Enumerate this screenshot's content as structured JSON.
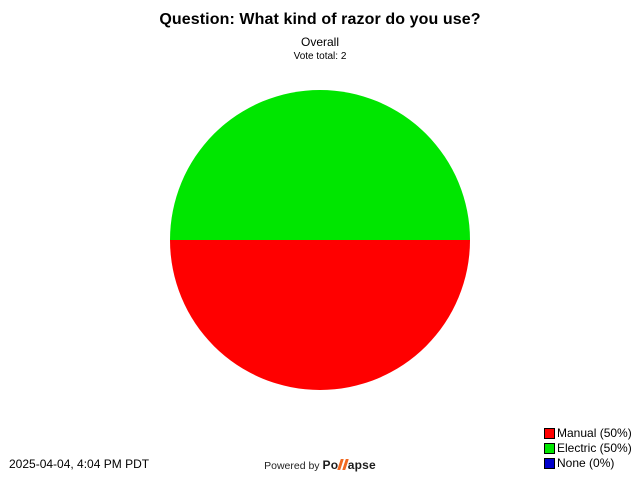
{
  "header": {
    "title": "Question: What kind of razor do you use?",
    "subtitle": "Overall",
    "vote_total": "Vote total: 2"
  },
  "chart_data": {
    "type": "pie",
    "title": "Question: What kind of razor do you use?",
    "subtitle": "Overall",
    "vote_total": 2,
    "start_angle_deg": 90,
    "direction": "clockwise",
    "slices": [
      {
        "label": "Manual",
        "pct": 50,
        "votes_share": 0.5,
        "color": "#ff0000"
      },
      {
        "label": "Electric",
        "pct": 50,
        "votes_share": 0.5,
        "color": "#00e600"
      },
      {
        "label": "None",
        "pct": 0,
        "votes_share": 0.0,
        "color": "#0000cc"
      }
    ],
    "legend": [
      {
        "label": "Manual (50%)",
        "color": "#ff0000"
      },
      {
        "label": "Electric (50%)",
        "color": "#00e600"
      },
      {
        "label": "None (0%)",
        "color": "#0000cc"
      }
    ],
    "legend_position": "bottom-right",
    "grid": false
  },
  "footer": {
    "timestamp": "2025-04-04, 4:04 PM PDT",
    "powered_by": "Powered by",
    "brand_prefix": "Po",
    "brand_suffix": "apse",
    "brand_accent_color": "#f06820"
  }
}
